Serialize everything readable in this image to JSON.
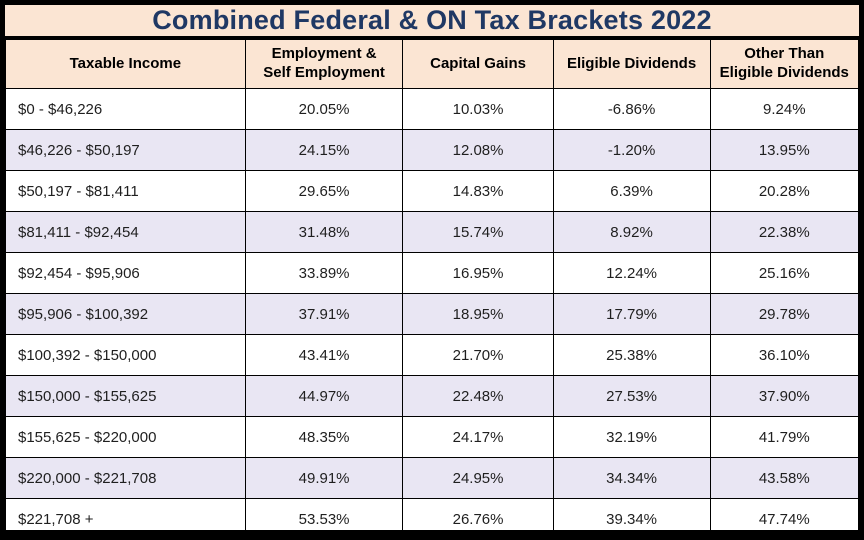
{
  "title": "Combined Federal & ON Tax Brackets 2022",
  "colors": {
    "outer_border": "#000000",
    "title_text": "#1f3864",
    "header_background": "#fbe5d3",
    "alternate_row_background": "#e9e6f3",
    "cell_border": "#000000",
    "body_text": "#1f1f1f"
  },
  "chart_data": {
    "type": "table",
    "title": "Combined Federal & ON Tax Brackets 2022",
    "columns": [
      "Taxable Income",
      "Employment &\nSelf Employment",
      "Capital Gains",
      "Eligible Dividends",
      "Other Than\nEligible Dividends"
    ],
    "rows": [
      [
        "$0 - $46,226",
        "20.05%",
        "10.03%",
        "-6.86%",
        "9.24%"
      ],
      [
        "$46,226 - $50,197",
        "24.15%",
        "12.08%",
        "-1.20%",
        "13.95%"
      ],
      [
        "$50,197 - $81,411",
        "29.65%",
        "14.83%",
        "6.39%",
        "20.28%"
      ],
      [
        "$81,411 - $92,454",
        "31.48%",
        "15.74%",
        "8.92%",
        "22.38%"
      ],
      [
        "$92,454 - $95,906",
        "33.89%",
        "16.95%",
        "12.24%",
        "25.16%"
      ],
      [
        "$95,906 - $100,392",
        "37.91%",
        "18.95%",
        "17.79%",
        "29.78%"
      ],
      [
        "$100,392 - $150,000",
        "43.41%",
        "21.70%",
        "25.38%",
        "36.10%"
      ],
      [
        "$150,000 - $155,625",
        "44.97%",
        "22.48%",
        "27.53%",
        "37.90%"
      ],
      [
        "$155,625 - $220,000",
        "48.35%",
        "24.17%",
        "32.19%",
        "41.79%"
      ],
      [
        "$220,000 - $221,708",
        "49.91%",
        "24.95%",
        "34.34%",
        "43.58%"
      ],
      [
        "$221,708 +",
        "53.53%",
        "26.76%",
        "39.34%",
        "47.74%"
      ]
    ]
  }
}
